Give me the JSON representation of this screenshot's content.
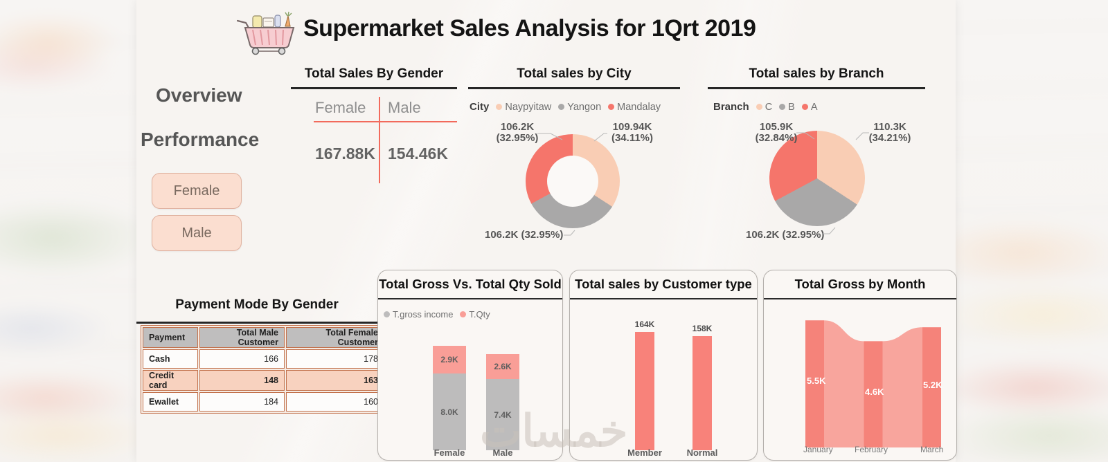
{
  "page": {
    "title": "Supermarket Sales Analysis for 1Qrt 2019",
    "watermark": "خمسات"
  },
  "nav": {
    "overview": "Overview",
    "performance": "Performance"
  },
  "filters": {
    "female": "Female",
    "male": "Male"
  },
  "colors": {
    "accent_red": "#f5756b",
    "peach": "#f9cdb4",
    "gray": "#a9a8a8",
    "bar_pink": "#f99e97",
    "bar_gray": "#bdbcbc",
    "bar_red": "#f8827a",
    "area_dark": "#f5837a",
    "area_light": "#f8a59d",
    "rule_red": "#f26a5c"
  },
  "chart_data": [
    {
      "id": "gender_matrix",
      "type": "table",
      "title": "Total Sales By Gender",
      "columns": [
        "Female",
        "Male"
      ],
      "values": [
        "167.88K",
        "154.46K"
      ]
    },
    {
      "id": "sales_by_city",
      "type": "pie",
      "subtype": "donut",
      "title": "Total sales by City",
      "legend_title": "City",
      "legend_position": "top",
      "slices": [
        {
          "name": "Naypyitaw",
          "value": 109.94,
          "value_label": "109.94K",
          "pct": 34.11,
          "pct_label": "(34.11%)",
          "color": "#f9cdb4"
        },
        {
          "name": "Yangon",
          "value": 106.2,
          "value_label": "106.2K",
          "pct": 32.95,
          "pct_label": "(32.95%)",
          "color": "#a9a8a8"
        },
        {
          "name": "Mandalay",
          "value": 106.2,
          "value_label": "106.2K",
          "pct": 32.95,
          "pct_label": "(32.95%)",
          "color": "#f5756b"
        }
      ]
    },
    {
      "id": "sales_by_branch",
      "type": "pie",
      "title": "Total sales by Branch",
      "legend_title": "Branch",
      "legend_position": "top",
      "slices": [
        {
          "name": "C",
          "value": 110.3,
          "value_label": "110.3K",
          "pct": 34.21,
          "pct_label": "(34.21%)",
          "color": "#f9cdb4"
        },
        {
          "name": "B",
          "value": 106.2,
          "value_label": "106.2K",
          "pct": 32.95,
          "pct_label": "(32.95%)",
          "color": "#a9a8a8"
        },
        {
          "name": "A",
          "value": 105.9,
          "value_label": "105.9K",
          "pct": 32.84,
          "pct_label": "(32.84%)",
          "color": "#f5756b"
        }
      ]
    },
    {
      "id": "payment_by_gender",
      "type": "table",
      "title": "Payment Mode By Gender",
      "columns": [
        "Payment",
        "Total Male Customer",
        "Total Female Customer"
      ],
      "rows": [
        [
          "Cash",
          "166",
          "178"
        ],
        [
          "Credit card",
          "148",
          "163"
        ],
        [
          "Ewallet",
          "184",
          "160"
        ]
      ]
    },
    {
      "id": "gross_vs_qty",
      "type": "bar",
      "subtype": "stacked",
      "title": "Total Gross Vs. Total Qty Sold",
      "categories": [
        "Female",
        "Male"
      ],
      "series": [
        {
          "name": "T.gross income",
          "color": "#bdbcbc",
          "values": [
            8.0,
            7.4
          ],
          "labels": [
            "8.0K",
            "7.4K"
          ]
        },
        {
          "name": "T.Qty",
          "color": "#f99e97",
          "values": [
            2.9,
            2.6
          ],
          "labels": [
            "2.9K",
            "2.6K"
          ]
        }
      ]
    },
    {
      "id": "sales_by_customer_type",
      "type": "bar",
      "title": "Total sales by Customer type",
      "categories": [
        "Member",
        "Normal"
      ],
      "values": [
        164,
        158
      ],
      "labels": [
        "164K",
        "158K"
      ],
      "color": "#f8827a"
    },
    {
      "id": "gross_by_month",
      "type": "area",
      "title": "Total Gross by Month",
      "categories": [
        "January",
        "February",
        "March"
      ],
      "values": [
        5.5,
        4.6,
        5.2
      ],
      "labels": [
        "5.5K",
        "4.6K",
        "5.2K"
      ],
      "color_band": "#f5837a",
      "color_area": "#f8a59d"
    }
  ]
}
